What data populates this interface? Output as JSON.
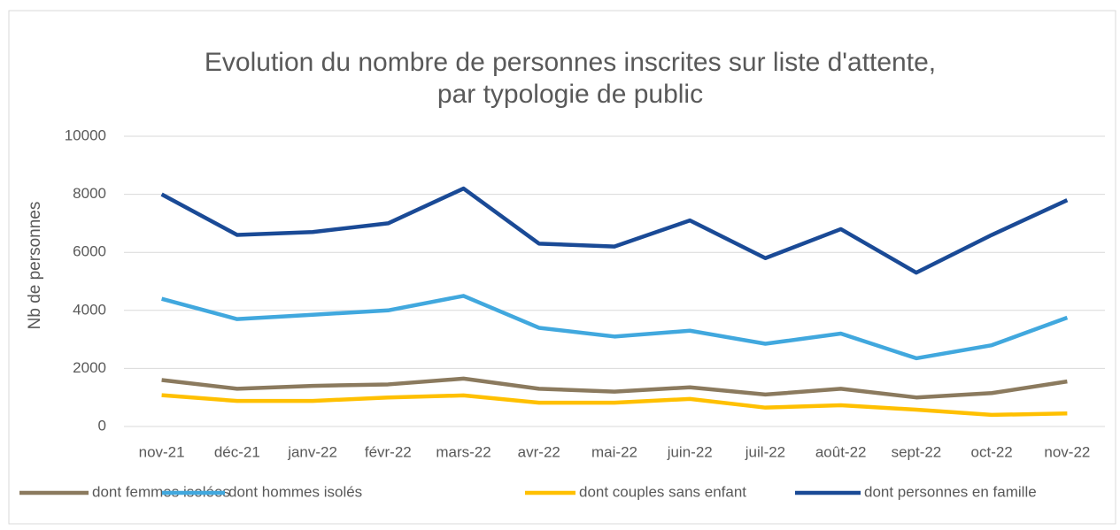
{
  "chart_data": {
    "type": "line",
    "title": [
      "Evolution du nombre de personnes inscrites sur liste d'attente,",
      "par typologie de public"
    ],
    "y_label": "Nb de personnes",
    "categories": [
      "nov-21",
      "déc-21",
      "janv-22",
      "févr-22",
      "mars-22",
      "avr-22",
      "mai-22",
      "juin-22",
      "juil-22",
      "août-22",
      "sept-22",
      "oct-22",
      "nov-22"
    ],
    "series": [
      {
        "name": "dont femmes isolées",
        "color": "#8b7a5e",
        "values": [
          1600,
          1300,
          1400,
          1450,
          1650,
          1300,
          1200,
          1350,
          1100,
          1300,
          1000,
          1150,
          1550
        ]
      },
      {
        "name": "dont hommes isolés",
        "color": "#41a8de",
        "values": [
          4400,
          3700,
          3850,
          4000,
          4500,
          3400,
          3100,
          3300,
          2850,
          3200,
          2350,
          2800,
          3750
        ]
      },
      {
        "name": "dont couples sans enfant",
        "color": "#ffc000",
        "values": [
          1080,
          880,
          880,
          1000,
          1070,
          820,
          820,
          950,
          650,
          730,
          580,
          400,
          450
        ]
      },
      {
        "name": "dont personnes en famille",
        "color": "#1a4a96",
        "values": [
          8000,
          6600,
          6700,
          7000,
          8200,
          6300,
          6200,
          7100,
          5800,
          6800,
          5300,
          6600,
          7800
        ]
      }
    ],
    "ylim": [
      0,
      10000
    ],
    "yticks": [
      0,
      2000,
      4000,
      6000,
      8000,
      10000
    ],
    "grid": true,
    "legend": "bottom"
  }
}
